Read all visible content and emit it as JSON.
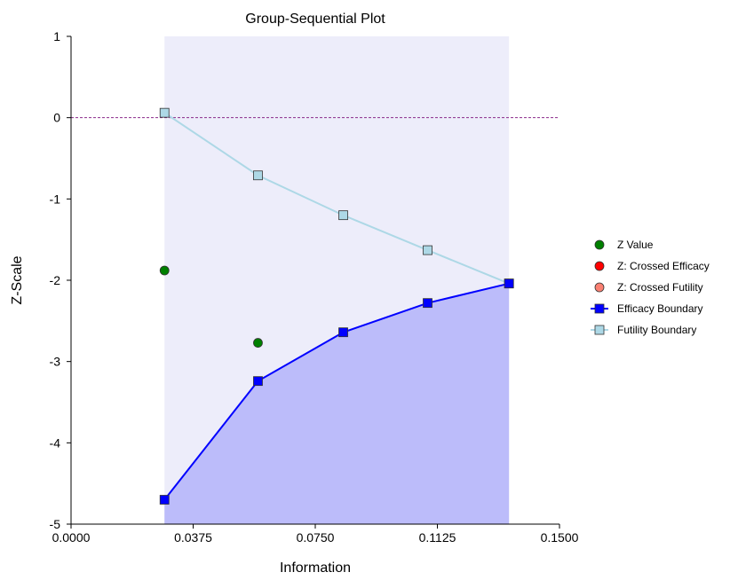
{
  "chart_data": {
    "type": "line",
    "title": "Group-Sequential Plot",
    "xlabel": "Information",
    "ylabel": "Z-Scale",
    "xlim": [
      0.0,
      0.15
    ],
    "ylim": [
      -5,
      1
    ],
    "x_ticks": [
      "0.0000",
      "0.0375",
      "0.0750",
      "0.1125",
      "0.1500"
    ],
    "y_ticks": [
      "1",
      "0",
      "-1",
      "-2",
      "-3",
      "-4",
      "-5"
    ],
    "reference_line_y": 0,
    "info_points": [
      0.0287,
      0.0574,
      0.0836,
      0.1095,
      0.1345
    ],
    "series": [
      {
        "name": "Z Value",
        "kind": "points",
        "color": "#008000",
        "x": [
          0.0287,
          0.0574
        ],
        "y": [
          -1.88,
          -2.77
        ]
      },
      {
        "name": "Z: Crossed Efficacy",
        "kind": "points",
        "color": "#ff0000",
        "x": [],
        "y": []
      },
      {
        "name": "Z: Crossed Futility",
        "kind": "points",
        "color": "#fa8072",
        "x": [],
        "y": []
      },
      {
        "name": "Efficacy Boundary",
        "kind": "line-squares",
        "color": "#0000ff",
        "x": [
          0.0287,
          0.0574,
          0.0836,
          0.1095,
          0.1345
        ],
        "y": [
          -4.7,
          -3.24,
          -2.64,
          -2.28,
          -2.04
        ]
      },
      {
        "name": "Futility Boundary",
        "kind": "line-squares",
        "color": "#add8e6",
        "x": [
          0.0287,
          0.0574,
          0.0836,
          0.1095,
          0.1345
        ],
        "y": [
          0.06,
          -0.71,
          -1.2,
          -1.63,
          -2.04
        ]
      }
    ],
    "legend_position": "right",
    "grid": false
  }
}
